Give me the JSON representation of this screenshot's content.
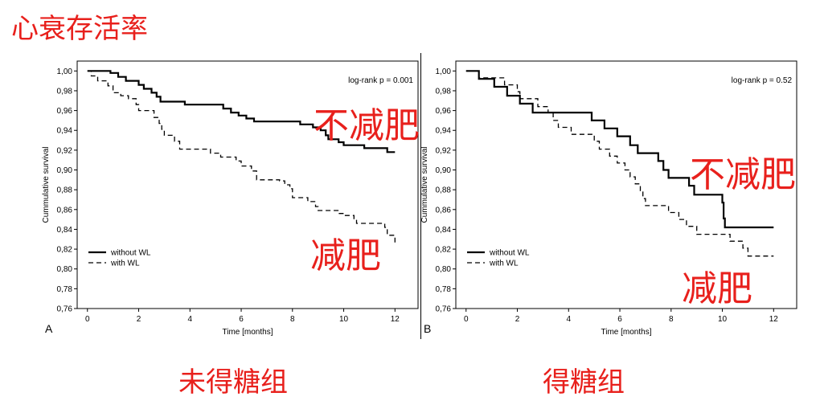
{
  "page_title": "心衰存活率",
  "chart_data": [
    {
      "panel_letter": "A",
      "group_label": "未得糖组",
      "type": "line",
      "step": true,
      "xlabel": "Time [months]",
      "ylabel": "Cummulative survival",
      "xlim": [
        -0.4,
        12.9
      ],
      "ylim": [
        0.76,
        1.01
      ],
      "x_ticks": [
        "0",
        "2",
        "4",
        "6",
        "8",
        "10",
        "12"
      ],
      "y_ticks": [
        "0,76",
        "0,78",
        "0,80",
        "0,82",
        "0,84",
        "0,86",
        "0,88",
        "0,90",
        "0,92",
        "0,94",
        "0,96",
        "0,98",
        "1,00"
      ],
      "annotation": "log-rank p = 0.001",
      "legend_position": "bottom-left",
      "series": [
        {
          "name": "without WL",
          "style": "solid",
          "annotation": "不减肥",
          "points": [
            [
              0,
              1.0
            ],
            [
              0.9,
              0.998
            ],
            [
              1.2,
              0.994
            ],
            [
              1.5,
              0.99
            ],
            [
              2.0,
              0.986
            ],
            [
              2.2,
              0.982
            ],
            [
              2.5,
              0.978
            ],
            [
              2.7,
              0.974
            ],
            [
              2.85,
              0.969
            ],
            [
              3.6,
              0.969
            ],
            [
              3.8,
              0.966
            ],
            [
              5.0,
              0.966
            ],
            [
              5.3,
              0.962
            ],
            [
              5.6,
              0.958
            ],
            [
              5.9,
              0.955
            ],
            [
              6.2,
              0.952
            ],
            [
              6.5,
              0.949
            ],
            [
              8.0,
              0.949
            ],
            [
              8.3,
              0.946
            ],
            [
              8.8,
              0.943
            ],
            [
              9.1,
              0.94
            ],
            [
              9.3,
              0.935
            ],
            [
              9.4,
              0.931
            ],
            [
              9.8,
              0.928
            ],
            [
              10.0,
              0.925
            ],
            [
              10.8,
              0.922
            ],
            [
              11.7,
              0.918
            ],
            [
              12.0,
              0.918
            ]
          ]
        },
        {
          "name": "with WL",
          "style": "dashed",
          "annotation": "减肥",
          "points": [
            [
              0,
              1.0
            ],
            [
              0.15,
              0.995
            ],
            [
              0.4,
              0.99
            ],
            [
              0.8,
              0.985
            ],
            [
              1.0,
              0.978
            ],
            [
              1.3,
              0.975
            ],
            [
              1.6,
              0.972
            ],
            [
              1.9,
              0.966
            ],
            [
              2.0,
              0.96
            ],
            [
              2.5,
              0.96
            ],
            [
              2.6,
              0.953
            ],
            [
              2.8,
              0.947
            ],
            [
              2.9,
              0.941
            ],
            [
              3.0,
              0.935
            ],
            [
              3.4,
              0.929
            ],
            [
              3.6,
              0.921
            ],
            [
              4.8,
              0.917
            ],
            [
              5.2,
              0.913
            ],
            [
              5.8,
              0.909
            ],
            [
              6.0,
              0.904
            ],
            [
              6.4,
              0.899
            ],
            [
              6.6,
              0.89
            ],
            [
              7.5,
              0.889
            ],
            [
              7.7,
              0.885
            ],
            [
              7.9,
              0.881
            ],
            [
              8.0,
              0.872
            ],
            [
              8.6,
              0.868
            ],
            [
              8.9,
              0.863
            ],
            [
              9.0,
              0.859
            ],
            [
              9.8,
              0.856
            ],
            [
              10.0,
              0.854
            ],
            [
              10.4,
              0.85
            ],
            [
              10.5,
              0.846
            ],
            [
              11.6,
              0.842
            ],
            [
              11.7,
              0.834
            ],
            [
              12.0,
              0.826
            ]
          ]
        }
      ]
    },
    {
      "panel_letter": "B",
      "group_label": "得糖组",
      "type": "line",
      "step": true,
      "xlabel": "Time [months]",
      "ylabel": "Cummulative survival",
      "xlim": [
        -0.4,
        12.9
      ],
      "ylim": [
        0.76,
        1.01
      ],
      "x_ticks": [
        "0",
        "2",
        "4",
        "6",
        "8",
        "10",
        "12"
      ],
      "y_ticks": [
        "0,76",
        "0,78",
        "0,80",
        "0,82",
        "0,84",
        "0,86",
        "0,88",
        "0,90",
        "0,92",
        "0,94",
        "0,96",
        "0,98",
        "1,00"
      ],
      "annotation": "log-rank p = 0.52",
      "legend_position": "bottom-left",
      "series": [
        {
          "name": "without WL",
          "style": "solid",
          "annotation": "不减肥",
          "points": [
            [
              0,
              1.0
            ],
            [
              0.5,
              0.992
            ],
            [
              1.1,
              0.984
            ],
            [
              1.6,
              0.975
            ],
            [
              2.1,
              0.967
            ],
            [
              2.6,
              0.958
            ],
            [
              4.9,
              0.95
            ],
            [
              5.4,
              0.942
            ],
            [
              5.9,
              0.934
            ],
            [
              6.4,
              0.925
            ],
            [
              6.7,
              0.917
            ],
            [
              7.5,
              0.909
            ],
            [
              7.7,
              0.9
            ],
            [
              7.9,
              0.892
            ],
            [
              8.7,
              0.884
            ],
            [
              8.9,
              0.875
            ],
            [
              10.0,
              0.867
            ],
            [
              10.05,
              0.851
            ],
            [
              10.1,
              0.842
            ],
            [
              12.0,
              0.842
            ]
          ]
        },
        {
          "name": "with WL",
          "style": "dashed",
          "annotation": "减肥",
          "points": [
            [
              0,
              1.0
            ],
            [
              0.5,
              0.993
            ],
            [
              1.5,
              0.986
            ],
            [
              2.0,
              0.979
            ],
            [
              2.1,
              0.972
            ],
            [
              2.8,
              0.964
            ],
            [
              3.2,
              0.958
            ],
            [
              3.4,
              0.95
            ],
            [
              3.6,
              0.943
            ],
            [
              4.1,
              0.936
            ],
            [
              5.0,
              0.929
            ],
            [
              5.2,
              0.921
            ],
            [
              5.6,
              0.914
            ],
            [
              5.9,
              0.907
            ],
            [
              6.2,
              0.9
            ],
            [
              6.4,
              0.893
            ],
            [
              6.6,
              0.886
            ],
            [
              6.8,
              0.879
            ],
            [
              6.9,
              0.871
            ],
            [
              7.0,
              0.864
            ],
            [
              7.9,
              0.857
            ],
            [
              8.3,
              0.85
            ],
            [
              8.6,
              0.843
            ],
            [
              9.0,
              0.835
            ],
            [
              10.0,
              0.835
            ],
            [
              10.3,
              0.828
            ],
            [
              10.8,
              0.821
            ],
            [
              11.0,
              0.813
            ],
            [
              12.0,
              0.813
            ]
          ]
        }
      ]
    }
  ]
}
